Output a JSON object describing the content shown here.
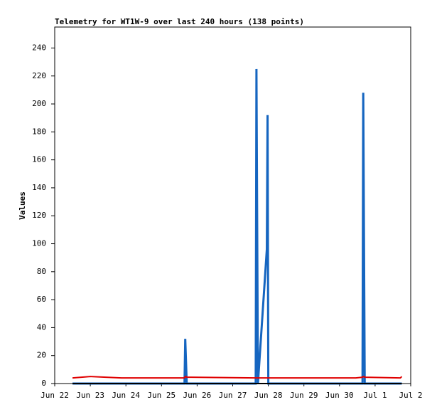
{
  "chart_data": {
    "type": "line",
    "title": "Telemetry for WT1W-9 over last 240 hours (138 points)",
    "y_label": "Values",
    "x": [
      12,
      24,
      45,
      87.5,
      88,
      88.5,
      89,
      92,
      135.5,
      136,
      136.5,
      137,
      143,
      143.5,
      144,
      203,
      207.5,
      208,
      208.5,
      209,
      233,
      234
    ],
    "series": [
      {
        "color": "#1565c0",
        "values": [
          0,
          0,
          0,
          0,
          32,
          16,
          0,
          0,
          0,
          225,
          112,
          0,
          96,
          192,
          0,
          0,
          0,
          208,
          104,
          0,
          0,
          0
        ]
      },
      {
        "color": "#000000",
        "values": [
          0,
          0,
          0,
          0,
          0,
          0,
          0,
          0,
          0,
          0,
          0,
          0,
          0,
          0,
          0,
          0,
          0,
          0,
          0,
          0,
          0,
          0
        ]
      },
      {
        "color": "#e00000",
        "values": [
          4,
          5,
          4,
          4,
          5,
          5,
          4.5,
          4.5,
          4,
          4,
          4,
          4,
          4,
          4,
          4,
          4,
          4.5,
          5,
          5,
          4.5,
          4,
          5
        ]
      }
    ],
    "xlim": [
      0,
      240
    ],
    "xticks": [
      {
        "value": 0,
        "label": "Jun 22"
      },
      {
        "value": 24,
        "label": "Jun 23"
      },
      {
        "value": 48,
        "label": "Jun 24"
      },
      {
        "value": 72,
        "label": "Jun 25"
      },
      {
        "value": 96,
        "label": "Jun 26"
      },
      {
        "value": 120,
        "label": "Jun 27"
      },
      {
        "value": 144,
        "label": "Jun 28"
      },
      {
        "value": 168,
        "label": "Jun 29"
      },
      {
        "value": 192,
        "label": "Jun 30"
      },
      {
        "value": 216,
        "label": "Jul 1"
      },
      {
        "value": 240,
        "label": "Jul 2"
      }
    ],
    "ylim": [
      0,
      255
    ],
    "yticks": [
      0,
      20,
      40,
      60,
      80,
      100,
      120,
      140,
      160,
      180,
      200,
      220,
      240
    ]
  }
}
